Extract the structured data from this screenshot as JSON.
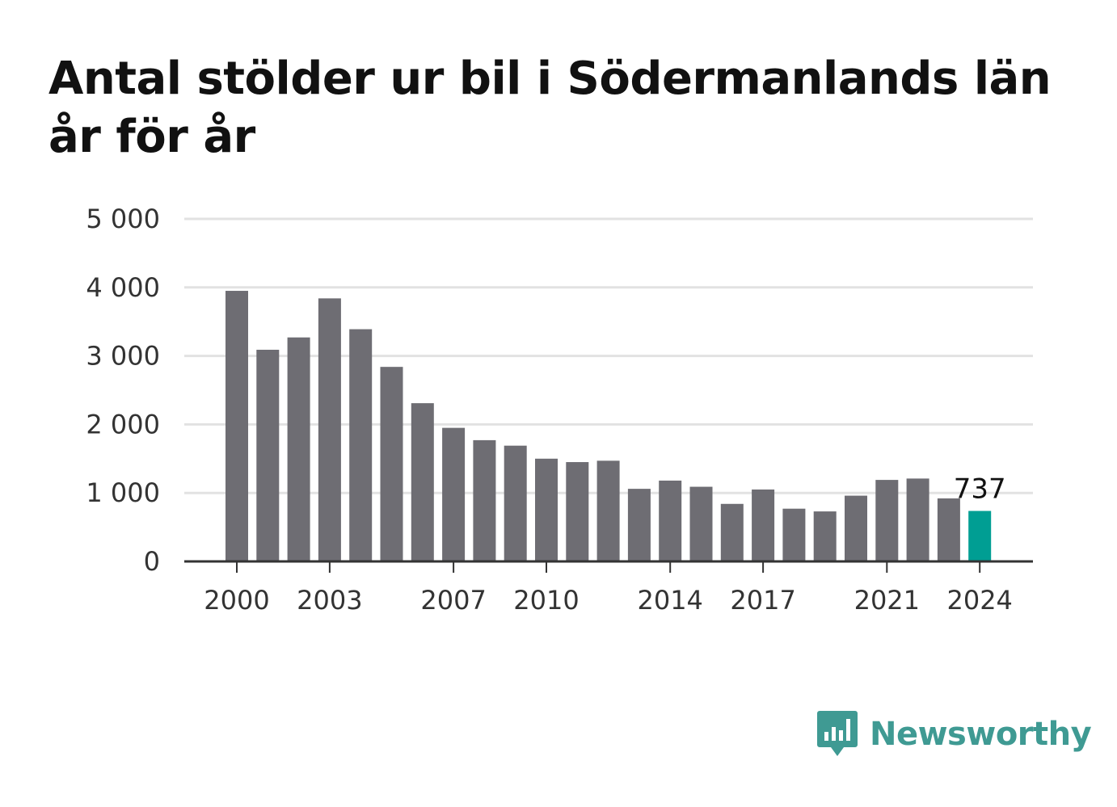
{
  "chart_data": {
    "type": "bar",
    "title": "Antal stölder ur bil i Södermanlands län år för år",
    "xlabel": "",
    "ylabel": "",
    "x": [
      2000,
      2001,
      2002,
      2003,
      2004,
      2005,
      2006,
      2007,
      2008,
      2009,
      2010,
      2011,
      2012,
      2013,
      2014,
      2015,
      2016,
      2017,
      2018,
      2019,
      2020,
      2021,
      2022,
      2023,
      2024
    ],
    "values": [
      3950,
      3090,
      3270,
      3840,
      3390,
      2840,
      2310,
      1950,
      1770,
      1690,
      1500,
      1450,
      1470,
      1060,
      1180,
      1090,
      840,
      1050,
      770,
      730,
      960,
      1190,
      1210,
      920,
      737
    ],
    "ylim": [
      0,
      5000
    ],
    "yticks": [
      0,
      1000,
      2000,
      3000,
      4000,
      5000
    ],
    "ytick_labels": [
      "0",
      "1 000",
      "2 000",
      "3 000",
      "4 000",
      "5 000"
    ],
    "xticks": [
      2000,
      2003,
      2007,
      2010,
      2014,
      2017,
      2021,
      2024
    ],
    "xtick_labels": [
      "2000",
      "2003",
      "2007",
      "2010",
      "2014",
      "2017",
      "2021",
      "2024"
    ],
    "highlight": {
      "year": 2024,
      "label": "737"
    },
    "grid": true,
    "colors": {
      "bar": "#6e6d73",
      "highlight": "#009e93",
      "grid": "#e2e2e2",
      "axis": "#333333"
    }
  },
  "branding": {
    "name": "Newsworthy",
    "icon": "newsworthy-logo-icon",
    "color": "#3f9a93"
  }
}
